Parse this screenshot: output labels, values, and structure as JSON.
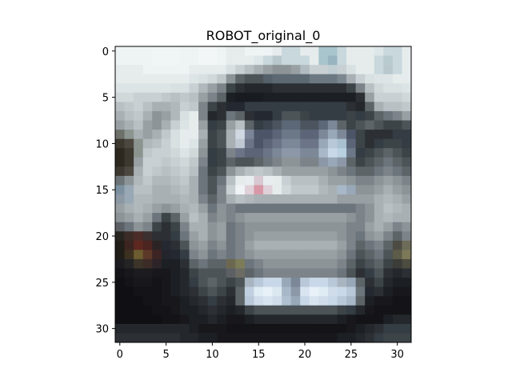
{
  "chart_data": {
    "type": "heatmap",
    "title": "ROBOT_original_0",
    "xlabel": "",
    "ylabel": "",
    "xlim": [
      -0.5,
      31.5
    ],
    "ylim": [
      31.5,
      -0.5
    ],
    "xticks": [
      0,
      5,
      10,
      15,
      20,
      25,
      30
    ],
    "yticks": [
      0,
      5,
      10,
      15,
      20,
      25,
      30
    ],
    "grid": false,
    "image_size": [
      32,
      32
    ],
    "image_description_rows": [
      "#eef3f3,#eef3f3,#eef3f3,#eef3f3,#f0f5f5,#f0f5f5,#f0f5f5,#eef3f3,#eef3f3,#f3f6f6,#f3f6f6,#eef3f3,#e6ecec,#e6ecec,#eef3f3,#eef3f3,#eef3f3,#e6ecec,#c8d8dc,#c8d8dc,#e6ecec,#e6ecec,#a8c4cc,#a8c4cc,#c8d8dc,#e6ecec,#e6ecec,#e6ecec,#dde6e8,#c8d8dc,#c8d8dc,#e6ecec",
      "#eef3f3,#eef3f3,#eef3f3,#eef3f3,#f0f5f5,#f0f5f5,#f0f5f5,#eef3f3,#eef3f3,#f3f6f6,#f3f6f6,#eef3f3,#e6ecec,#e6ecec,#e6ecec,#dde6e8,#c8d8dc,#b8c8cc,#c8d8dc,#c8d8dc,#c8d8dc,#e6ecec,#a8c4cc,#98b4c0,#c8d8dc,#e6ecec,#e6ecec,#e6ecec,#c8d8dc,#b8cccf,#c8d8dc,#e6ecec",
      "#e6ecec,#e6ecec,#e6ecec,#eef3f3,#eef3f3,#eef3f3,#eef3f3,#eef3f3,#e6ecec,#e6ecec,#e6ecec,#e6ecec,#d8e0e2,#c8d0d4,#b8c0c4,#a8b0b4,#98a0a4,#8c9498,#8c9498,#98a0a4,#b0bcc0,#c8d0d4,#c8d0d4,#c0cdd2,#c8d0d4,#d8e0e2,#e6ecec,#e6ecec,#c8d8dc,#b8c8cc,#c8d8dc,#e6ecec",
      "#e6ecec,#e6ecec,#e6ecec,#e6ecec,#e6ecec,#e6ecec,#e6ecec,#e6ecec,#dde4e6,#d8e0e2,#d0d8da,#c0c8ca,#8c9498,#5c6468,#4c5458,#4c5458,#54606a,#5c6872,#5c6872,#5c6872,#5c6872,#6c7882,#6c7882,#6c7882,#7c8890,#a8b0b4,#c8d0d4,#d8e0e2,#dde4e6,#dde4e6,#e6ecec,#e6ecec",
      "#dde4e6,#dde4e6,#dde4e6,#dde4e6,#dde4e6,#dde4e6,#d8e0e2,#d8e0e2,#c8d0d4,#b0b8bc,#98a0a4,#7c848a,#3c4448,#2c3034,#24282c,#24282c,#24282c,#2c3034,#2c3034,#2c3034,#2c3034,#2c3034,#2c3034,#2c3034,#2c3034,#3c4448,#7c848a,#b8c0c4,#d0d8da,#d8e0e2,#d8e0e2,#dde4e6",
      "#d0d8da,#d0d8da,#c8d0d4,#c8d0d4,#c8d0d4,#c0c8cc,#b8c0c4,#c0c8cc,#b8c0c4,#98a0a4,#7c848a,#5c6468,#1c2024,#181c20,#181c20,#181c20,#1c2024,#1c2024,#1c2024,#1c2024,#1c2024,#1c2024,#1c2024,#1c2024,#1c2024,#1c2024,#2c3034,#98a0a4,#c8d0d4,#c8d0d4,#c8d0d4,#d0d8da",
      "#b8c0c4,#c0c8cc,#c8d0d4,#b8c0c4,#a8b0b4,#a8b0b4,#b0b8bc,#c8d0d4,#c0c8cc,#7c848a,#3c4448,#2c3034,#242830,#242830,#343c44,#343c44,#343c44,#343c44,#343c44,#343c44,#343c44,#343c44,#343c44,#343c44,#343c44,#2c3034,#24282c,#5c6468,#a8b0b4,#b8c0c4,#b8c0c4,#c0c8cc",
      "#a8b0b4,#b8c0c4,#c0c8cc,#a8b0b4,#8c9498,#98a0a4,#b0b8bc,#d8e0e2,#e6ecec,#7c848a,#24282c,#2c3034,#6c747c,#5c6468,#2c3034,#242830,#242830,#343c44,#4c5458,#4c5458,#3c4448,#343c44,#343c44,#343c44,#343c44,#3c4448,#343c44,#3c4448,#5c6468,#6c747c,#7c848a,#98a0a4",
      "#98a0a4,#a8b0b4,#b8c0c4,#98a0a4,#8c9498,#a8b0b4,#c8d0d4,#dde4e6,#e6ecec,#98a0a4,#343c44,#3c4448,#98a0a4,#b8c0c4,#5c6468,#343c44,#3c4450,#4c5460,#5c6878,#5c6878,#4c5460,#4c5460,#5c6878,#7c8898,#5c6468,#3c4448,#4c5458,#5c6468,#4c5458,#3c4448,#3c4448,#4c5458",
      "#6c7068,#8c9490,#a8b0b4,#98a0a4,#a8b0b4,#c0c8cc,#d8e0e2,#e6ecec,#e6ecec,#a8b0b4,#3c4448,#4c5458,#a8b0b4,#d0d8e2,#7c8498,#4c5468,#4c5468,#5c6478,#6c7888,#6c7888,#5c6478,#5c6478,#7c8898,#98a8b8,#7c8898,#4c5468,#3c4448,#2c3034,#2c3034,#2c3034,#343c44,#343c44",
      "#3c3830,#4c4840,#8c9490,#b0b8bc,#b8c0c4,#c8d0d4,#d8e0e2,#e6ecec,#dde4e6,#98a0a4,#3c4448,#4c5458,#a8b0b4,#c0c8d4,#6c7488,#4c5468,#5c6478,#6c7488,#7c8898,#7c8898,#6c7488,#6c7488,#98a8b8,#b8c8d8,#a8c0d0,#5c6478,#3c4448,#2c3034,#343c44,#3c4448,#3c4448,#343c44",
      "#2c2820,#3c3830,#8c9490,#c0c8cc,#c8d0d4,#c8d0d4,#d0d8da,#dde4e6,#d0d8da,#8c9498,#343c44,#3c4448,#7c848a,#6c7488,#5c6478,#5c6478,#6c7488,#7c8898,#8c98a8,#8c98a8,#7c8898,#7c8898,#a8b8c8,#c8d8e8,#b8d0e0,#6c7888,#343c44,#3c4448,#4c5458,#5c6468,#4c5458,#3c4448",
      "#2c2820,#3c3830,#98a0a4,#c8d0d4,#c8d0d4,#c0c8cc,#c8d0d4,#d0d8da,#c0c8cc,#7c848a,#343c44,#3c4448,#5c6468,#4c5458,#4c5458,#5c6468,#6c747c,#7c848a,#8c9498,#8c9498,#7c848a,#7c848a,#8c98a8,#98a8b8,#8c98a8,#5c6468,#3c4448,#4c5458,#5c6468,#6c747c,#5c6468,#4c5458",
      "#3c3830,#4c4840,#a8b0b4,#c8d0d4,#c0c8cc,#b8c0c4,#c0c8cc,#c8d0d4,#b8c0c4,#6c747c,#3c4448,#4c5458,#8c9498,#a8b0b4,#b8c0c4,#c0c8cc,#b8c0c4,#a8b0b4,#98a0a4,#98a0a4,#98a0a4,#98a0a4,#98a0a4,#8c9498,#7c848a,#6c747c,#5c6468,#5c6468,#6c747c,#7c848a,#6c747c,#5c6468",
      "#6c7478,#8c9498,#b0b8bc,#c0c8cc,#b0b8bc,#b0b8bc,#b8c0c4,#c0c8cc,#a8b0b4,#6c747c,#4c5458,#6c747c,#b8c0c4,#e6ecec,#e8eef0,#d8c8d0,#e8eef0,#e6ecec,#c8d0d4,#b8c0c4,#b8c0c4,#b8c0c4,#a8b0b4,#98a0a4,#98a0a4,#8c9498,#7c848a,#7c848a,#8c9498,#98a0a4,#8c9498,#7c848a",
      "#7c90a0,#98a8b4,#b8c0c4,#b8c0c4,#a8b0b4,#a8b0b4,#b0b8bc,#b8c0c4,#a8b0b4,#6c747c,#4c5458,#7c848a,#c8d0d4,#f0f4f6,#e0d0d8,#d898a8,#e0d0d8,#e6ecec,#d0d8da,#c0c8cc,#c0c8cc,#c0c8cc,#b0b8bc,#a8b0b4,#a8b8c8,#98a8b8,#8c9498,#8c9498,#98a0a4,#a8b0b4,#98a0a4,#8c9498",
      "#8c98a4,#98a8b4,#b0b8bc,#b0b8bc,#a8b0b4,#a8b0b4,#a8b0b4,#b0b8bc,#a8b0b4,#7c848a,#5c6468,#7c848a,#a8b0b4,#b8c0c4,#b0b8bc,#a8b0b4,#a8b0b4,#a8b0b4,#a8b0b4,#a8b0b4,#a8b0b4,#a8b0b4,#a8b0b4,#a8b0b4,#98a0a4,#98a0a4,#98a0a4,#98a0a4,#a8b0b4,#b0b8bc,#a8b0b4,#98a0a4",
      "#98a0a4,#a8b0b4,#b0b8bc,#a8b0b4,#98a0a4,#8c9498,#98a0a4,#a8b0b4,#b0b8bc,#98a0a4,#6c747c,#8c9498,#7c848a,#6c747c,#6c747c,#6c747c,#6c747c,#6c747c,#6c747c,#6c747c,#6c747c,#6c747c,#6c747c,#6c747c,#6c747c,#6c747c,#7c848a,#8c9498,#a8b0b4,#b8c0c4,#b0b8bc,#a8b0b4",
      "#8c9498,#98a0a4,#a8b0b4,#98a0a4,#6c747c,#3c4448,#5c6468,#98a0a4,#b8c0c4,#a8b0b4,#7c848a,#8c9498,#7c848a,#8c9498,#98a0a4,#98a0a4,#98a0a4,#98a0a4,#98a0a4,#98a0a4,#98a0a4,#98a0a4,#98a0a4,#98a0a4,#98a0a4,#8c9498,#7c848a,#8c9498,#a8b0b4,#b0b8bc,#a8b0b4,#a8b0b4",
      "#5c6064,#6c747c,#8c9498,#7c848a,#3c4448,#2c3034,#3c4448,#7c848a,#a8b0b4,#a8b0b4,#8c9498,#98a0a4,#6c747c,#7c848a,#8c9498,#8c9498,#8c9498,#8c9498,#8c9498,#8c9498,#8c9498,#8c9498,#8c9498,#8c9498,#8c9498,#7c848a,#7c848a,#98a0a4,#a8b0b4,#98a0a4,#7c848a,#8c9498",
      "#282420,#3c2c28,#4c2c28,#3c3030,#2c3034,#2c3034,#343c44,#6c747c,#98a0a4,#a8b0b4,#8c9498,#98a0a4,#6c747c,#7c848a,#8c9498,#98a0a4,#98a0a4,#98a0a4,#98a0a4,#98a0a4,#98a0a4,#98a0a4,#98a0a4,#98a0a4,#8c9498,#7c848a,#6c747c,#8c9498,#98a0a4,#7c848a,#5c6468,#7c848a",
      "#201c18,#3c2420,#5c2820,#4c2420,#2c2424,#242830,#2c3034,#4c5458,#8c9498,#98a0a4,#7c848a,#8c9498,#6c747c,#7c848a,#98a0a4,#a8b0b4,#a8b0b4,#a8b0b4,#a8b0b4,#a8b0b4,#a8b0b4,#a8b0b4,#a8b0b4,#a8b0b4,#98a0a4,#7c848a,#5c6468,#6c747c,#7c848a,#5c6468,#4c4c44,#6c6c58",
      "#201c18,#3c3020,#6c5c30,#5c3828,#3c2424,#24242c,#242830,#343c44,#7c848a,#8c9498,#6c747c,#7c848a,#6c747c,#7c848a,#8c9498,#98a0a4,#98a0a4,#98a0a4,#98a0a4,#98a0a4,#98a0a4,#98a0a4,#98a0a4,#98a0a4,#8c9498,#6c747c,#4c5458,#5c6468,#6c747c,#4c5458,#5c5c48,#7c7858",
      "#1c1c20,#242424,#3c3428,#3c2c28,#2c2428,#1c2024,#1c2024,#2c3034,#5c6468,#6c747c,#5c6468,#5c6468,#6c6850,#7c7c58,#6c747c,#7c848a,#8c9498,#8c9498,#8c9498,#8c9498,#8c9498,#8c9498,#8c9498,#8c9498,#7c848a,#5c6468,#3c4448,#4c5458,#5c6468,#3c4448,#3c3c38,#4c4c40",
      "#141418,#18181c,#1c1c20,#1c1c20,#18181c,#18181c,#1c2024,#24282c,#3c4448,#4c5458,#4c5458,#4c5458,#5c6064,#6c6c64,#5c6468,#6c747c,#7c848a,#7c848a,#7c848a,#7c848a,#7c848a,#7c848a,#7c848a,#7c848a,#6c747c,#4c5458,#2c3034,#343c44,#4c5458,#2c3034,#24282c,#2c3034",
      "#101014,#141418,#18181c,#18181c,#141418,#18181c,#1c2024,#24282c,#343c44,#4c5458,#5c6468,#4c5458,#3c4448,#4c5458,#a8b4c0,#b8c8d8,#c8d8e8,#c8d8e8,#98a8b8,#7c8898,#b8c8d8,#c8d8e8,#c8d8e8,#b8c8d8,#a8b4c0,#98a8b8,#5c6468,#2c3034,#3c4448,#24282c,#1c2024,#1c2024",
      "#101014,#101014,#141418,#141418,#141418,#18181c,#1c2024,#24282c,#2c3034,#3c4448,#4c5458,#3c4448,#2c3034,#5c6468,#c0d0e0,#e0ecf4,#e8f0f8,#dce8f0,#a8b8c8,#8c98a8,#d8e4f0,#e8f0f8,#e0ecf4,#d0dcea,#c8d8e8,#b8c8d8,#6c747c,#242830,#2c3034,#1c2024,#18181c,#18181c",
      "#101014,#101014,#101014,#141418,#141418,#18181c,#18181c,#1c2024,#24282c,#2c3034,#343c44,#2c3034,#24282c,#5c6468,#b8c8d8,#d0dcea,#d8e4f0,#d0dcea,#b0c0d0,#98a8b8,#c8d8e8,#d8e4f0,#d0dcea,#c8d8e8,#b8c8d8,#a8b8c8,#5c6468,#1c2024,#18181c,#18181c,#141418,#141418",
      "#101014,#101014,#101014,#101014,#141418,#141418,#18181c,#1c2024,#1c2024,#24282c,#2c3034,#24282c,#1c2024,#24282c,#3c4448,#4c5458,#4c5458,#4c5458,#4c5458,#4c5458,#4c5458,#4c5458,#4c5458,#4c5458,#3c4448,#343c44,#24282c,#18181c,#141418,#141418,#141418,#141418",
      "#101014,#101014,#101014,#101014,#101014,#141418,#141418,#18181c,#1c2024,#1c2024,#24282c,#1c2024,#18181c,#18181c,#1c2024,#24282c,#24282c,#24282c,#24282c,#24282c,#24282c,#24282c,#24282c,#24282c,#1c2024,#18181c,#141418,#141418,#141418,#1c2024,#24282c,#24282c",
      "#24282c,#24282c,#24282c,#24282c,#24282c,#24282c,#24282c,#24282c,#1c2024,#18181c,#18181c,#18181c,#141418,#141418,#141418,#141418,#141418,#141418,#141418,#141418,#141418,#141418,#141418,#141418,#141418,#18181c,#1c2024,#24282c,#2c3034,#343c44,#343c44,#343c44",
      "#2c3034,#2c3034,#2c3034,#2c3034,#2c3034,#2c3034,#2c3034,#24282c,#24282c,#1c2024,#1c2024,#18181c,#18181c,#18181c,#18181c,#18181c,#18181c,#18181c,#18181c,#18181c,#18181c,#18181c,#18181c,#18181c,#1c2024,#1c2024,#24282c,#2c3034,#343c44,#3c4448,#3c4448,#3c4448"
    ]
  }
}
